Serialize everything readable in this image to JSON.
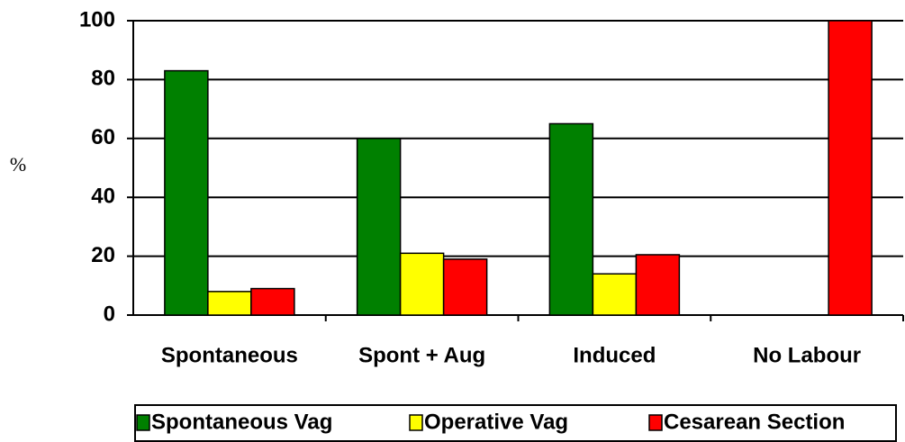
{
  "chart_data": {
    "type": "bar",
    "y_label": "%",
    "categories": [
      "Spontaneous",
      "Spont + Aug",
      "Induced",
      "No Labour"
    ],
    "series": [
      {
        "name": "Spontaneous Vag",
        "color": "#008000",
        "values": [
          83,
          60,
          65,
          0
        ]
      },
      {
        "name": "Operative Vag",
        "color": "#ffff00",
        "values": [
          8,
          21,
          14,
          0
        ]
      },
      {
        "name": "Cesarean Section",
        "color": "#ff0000",
        "values": [
          9,
          19,
          20.5,
          100
        ]
      }
    ],
    "ylim": [
      0,
      100
    ],
    "yticks": [
      0,
      20,
      40,
      60,
      80,
      100
    ],
    "grid": true,
    "legend": "bottom"
  }
}
